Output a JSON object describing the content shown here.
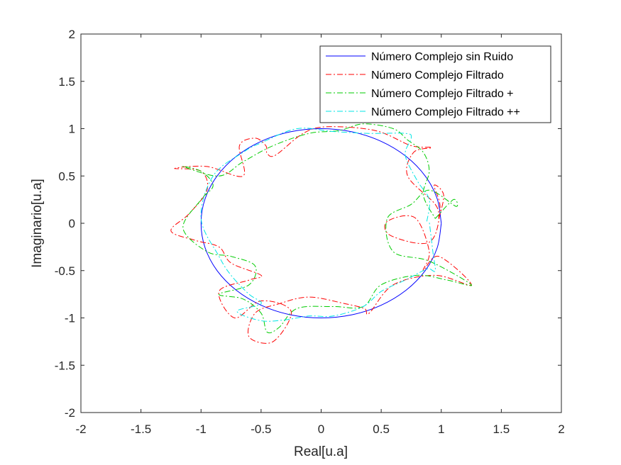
{
  "chart_data": {
    "type": "line",
    "title": "",
    "xlabel": "Real[u.a]",
    "ylabel": "Imaginario[u.a]",
    "xlim": [
      -2,
      2
    ],
    "ylim": [
      -2,
      2
    ],
    "xticks": [
      "-2",
      "-1.5",
      "-1",
      "-0.5",
      "0",
      "0.5",
      "1",
      "1.5",
      "2"
    ],
    "yticks": [
      "2",
      "1.5",
      "1",
      "0.5",
      "0",
      "-0.5",
      "-1",
      "-1.5",
      "-2"
    ],
    "grid": false,
    "legend_position": "top-right",
    "series": [
      {
        "name": "Número Complejo sin Ruido",
        "color": "#0000ff",
        "style": "solid",
        "points": [
          [
            1,
            0
          ],
          [
            0.966,
            0.259
          ],
          [
            0.866,
            0.5
          ],
          [
            0.707,
            0.707
          ],
          [
            0.5,
            0.866
          ],
          [
            0.259,
            0.966
          ],
          [
            0,
            1
          ],
          [
            -0.259,
            0.966
          ],
          [
            -0.5,
            0.866
          ],
          [
            -0.707,
            0.707
          ],
          [
            -0.866,
            0.5
          ],
          [
            -0.966,
            0.259
          ],
          [
            -1,
            0
          ],
          [
            -0.966,
            -0.259
          ],
          [
            -0.866,
            -0.5
          ],
          [
            -0.707,
            -0.707
          ],
          [
            -0.5,
            -0.866
          ],
          [
            -0.259,
            -0.966
          ],
          [
            0,
            -1
          ],
          [
            0.259,
            -0.966
          ],
          [
            0.5,
            -0.866
          ],
          [
            0.707,
            -0.707
          ],
          [
            0.866,
            -0.5
          ],
          [
            0.966,
            -0.259
          ],
          [
            1,
            0
          ]
        ]
      },
      {
        "name": "Número Complejo Filtrado",
        "color": "#ff0000",
        "style": "dashdot",
        "points": [
          [
            0.98,
            0.05
          ],
          [
            1.02,
            0.3
          ],
          [
            0.94,
            0.4
          ],
          [
            0.99,
            0.15
          ],
          [
            0.9,
            -0.2
          ],
          [
            0.58,
            -0.13
          ],
          [
            0.55,
            0.02
          ],
          [
            0.78,
            0.06
          ],
          [
            0.9,
            -0.3
          ],
          [
            0.85,
            -0.5
          ],
          [
            0.98,
            -0.35
          ],
          [
            1.25,
            -0.65
          ],
          [
            0.95,
            -0.55
          ],
          [
            0.6,
            -0.65
          ],
          [
            0.4,
            -0.95
          ],
          [
            0.36,
            -0.9
          ],
          [
            0.2,
            -0.85
          ],
          [
            -0.1,
            -0.78
          ],
          [
            -0.35,
            -0.85
          ],
          [
            -0.55,
            -0.95
          ],
          [
            -0.6,
            -1.2
          ],
          [
            -0.4,
            -1.25
          ],
          [
            -0.25,
            -0.93
          ],
          [
            -0.5,
            -0.82
          ],
          [
            -0.72,
            -1.0
          ],
          [
            -0.85,
            -0.72
          ],
          [
            -0.6,
            -0.6
          ],
          [
            -0.5,
            -0.55
          ],
          [
            -0.75,
            -0.42
          ],
          [
            -0.85,
            -0.25
          ],
          [
            -1.05,
            -0.18
          ],
          [
            -1.25,
            -0.08
          ],
          [
            -1.1,
            0.1
          ],
          [
            -0.95,
            0.35
          ],
          [
            -1.0,
            0.55
          ],
          [
            -1.22,
            0.58
          ],
          [
            -0.95,
            0.6
          ],
          [
            -0.65,
            0.5
          ],
          [
            -0.68,
            0.82
          ],
          [
            -0.55,
            0.9
          ],
          [
            -0.46,
            0.82
          ],
          [
            -0.45,
            0.74
          ],
          [
            -0.38,
            0.72
          ],
          [
            -0.15,
            0.95
          ],
          [
            0.05,
            1.02
          ],
          [
            0.45,
            0.98
          ],
          [
            0.75,
            0.82
          ],
          [
            0.92,
            0.8
          ],
          [
            0.77,
            0.75
          ],
          [
            0.72,
            0.5
          ],
          [
            0.95,
            0.2
          ],
          [
            0.98,
            0.05
          ]
        ]
      },
      {
        "name": "Número Complejo Filtrado +",
        "color": "#00cc00",
        "style": "dashdot",
        "points": [
          [
            0.95,
            0.05
          ],
          [
            1.1,
            0.25
          ],
          [
            1.12,
            0.18
          ],
          [
            0.9,
            0.35
          ],
          [
            0.75,
            0.2
          ],
          [
            0.55,
            0.05
          ],
          [
            0.6,
            -0.3
          ],
          [
            0.9,
            -0.4
          ],
          [
            1.25,
            -0.65
          ],
          [
            1.05,
            -0.6
          ],
          [
            0.8,
            -0.55
          ],
          [
            0.5,
            -0.65
          ],
          [
            0.35,
            -0.88
          ],
          [
            0.1,
            -0.88
          ],
          [
            -0.2,
            -0.9
          ],
          [
            -0.35,
            -1.1
          ],
          [
            -0.45,
            -1.15
          ],
          [
            -0.5,
            -0.95
          ],
          [
            -0.65,
            -0.8
          ],
          [
            -0.85,
            -0.75
          ],
          [
            -0.6,
            -0.65
          ],
          [
            -0.55,
            -0.45
          ],
          [
            -0.75,
            -0.35
          ],
          [
            -0.95,
            -0.3
          ],
          [
            -1.15,
            -0.05
          ],
          [
            -1.0,
            0.25
          ],
          [
            -0.9,
            0.4
          ],
          [
            -1.0,
            0.55
          ],
          [
            -1.15,
            0.6
          ],
          [
            -0.85,
            0.5
          ],
          [
            -0.65,
            0.65
          ],
          [
            -0.4,
            0.82
          ],
          [
            -0.1,
            0.95
          ],
          [
            0.15,
            0.98
          ],
          [
            0.35,
            1.05
          ],
          [
            0.6,
            1.0
          ],
          [
            0.72,
            0.88
          ],
          [
            0.85,
            0.75
          ],
          [
            0.9,
            0.55
          ],
          [
            0.85,
            0.3
          ],
          [
            0.95,
            0.05
          ]
        ]
      },
      {
        "name": "Número Complejo Filtrado ++",
        "color": "#00e5e5",
        "style": "dashdot",
        "points": [
          [
            0.88,
            0.02
          ],
          [
            0.9,
            0.25
          ],
          [
            0.8,
            0.45
          ],
          [
            0.7,
            0.72
          ],
          [
            0.75,
            0.9
          ],
          [
            0.7,
            0.95
          ],
          [
            0.4,
            0.95
          ],
          [
            0.1,
            0.97
          ],
          [
            -0.2,
            1.0
          ],
          [
            -0.5,
            0.85
          ],
          [
            -0.65,
            0.75
          ],
          [
            -0.9,
            0.5
          ],
          [
            -1.0,
            0.05
          ],
          [
            -0.85,
            -0.35
          ],
          [
            -0.75,
            -0.55
          ],
          [
            -0.6,
            -0.75
          ],
          [
            -0.5,
            -0.85
          ],
          [
            -0.7,
            -0.93
          ],
          [
            -0.5,
            -1.03
          ],
          [
            -0.3,
            -1.02
          ],
          [
            -0.1,
            -0.98
          ],
          [
            0.1,
            -0.98
          ],
          [
            0.35,
            -0.88
          ],
          [
            0.5,
            -0.72
          ],
          [
            0.7,
            -0.6
          ],
          [
            0.85,
            -0.5
          ],
          [
            0.9,
            -0.48
          ],
          [
            0.95,
            -0.5
          ],
          [
            0.93,
            -0.3
          ],
          [
            0.9,
            0.02
          ]
        ]
      }
    ]
  }
}
